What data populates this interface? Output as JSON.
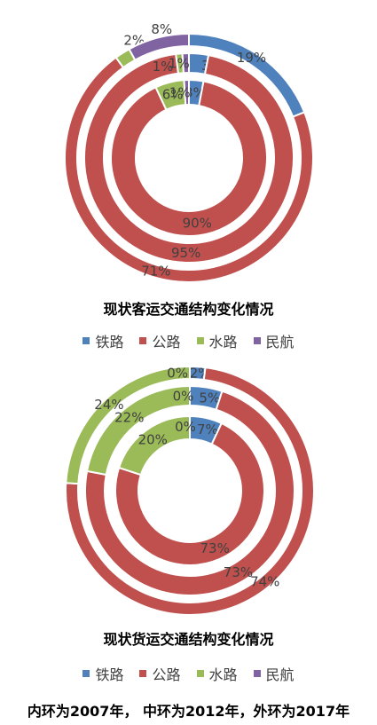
{
  "colors": {
    "railway": "#4f81bd",
    "road": "#c0504d",
    "water": "#9bbb59",
    "air": "#8064a2"
  },
  "chart_data": [
    {
      "type": "donut",
      "title": "现状客运交通结构变化情况",
      "categories": [
        "铁路",
        "公路",
        "水路",
        "民航"
      ],
      "series": [
        {
          "values": [
            3,
            90,
            6,
            1
          ],
          "labels": [
            "3%",
            "90%",
            "6%",
            "1%"
          ]
        },
        {
          "values": [
            3,
            95,
            1,
            1
          ],
          "labels": [
            "3%",
            "95%",
            "1%",
            "1%"
          ]
        },
        {
          "values": [
            19,
            71,
            2,
            8
          ],
          "labels": [
            "19%",
            "71%",
            "2%",
            "8%"
          ]
        }
      ],
      "legend": [
        "铁路",
        "公路",
        "水路",
        "民航"
      ],
      "legend_position": "bottom"
    },
    {
      "type": "donut",
      "title": "现状货运交通结构变化情况",
      "categories": [
        "铁路",
        "公路",
        "水路",
        "民航"
      ],
      "series": [
        {
          "values": [
            7,
            73,
            20,
            0
          ],
          "labels": [
            "7%",
            "73%",
            "20%",
            "0%"
          ]
        },
        {
          "values": [
            5,
            73,
            22,
            0
          ],
          "labels": [
            "5%",
            "73%",
            "22%",
            "0%"
          ]
        },
        {
          "values": [
            2,
            74,
            24,
            0
          ],
          "labels": [
            "2%",
            "74%",
            "24%",
            "0%"
          ]
        }
      ],
      "legend": [
        "铁路",
        "公路",
        "水路",
        "民航"
      ],
      "legend_position": "bottom"
    }
  ],
  "footer": "内环为2007年， 中环为2012年，外环为2017年"
}
